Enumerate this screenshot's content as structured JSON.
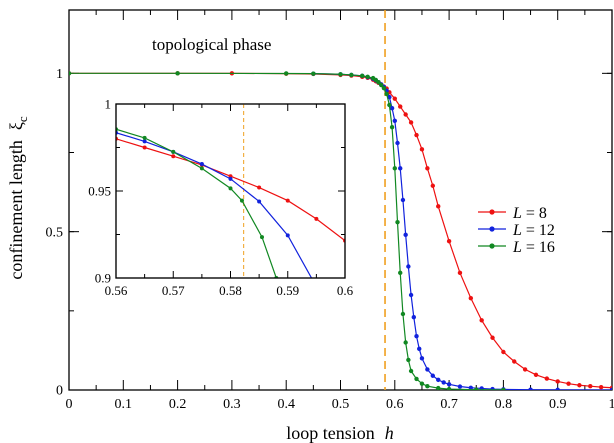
{
  "chart_data": [
    {
      "id": "main",
      "type": "line",
      "xlabel": "loop tension",
      "xlabel_symbol": "h",
      "ylabel": "confinement length",
      "ylabel_symbol": "ξ",
      "ylabel_subscript": "c",
      "xlim": [
        0,
        1
      ],
      "ylim": [
        0,
        1.2
      ],
      "xticks": [
        "0",
        "0.1",
        "0.2",
        "0.3",
        "0.4",
        "0.5",
        "0.6",
        "0.7",
        "0.8",
        "0.9",
        "1"
      ],
      "yticks": [
        "0",
        "0.5",
        "1"
      ],
      "annotation": "topological phase",
      "critical_h": 0.582,
      "critical_line_color": "#f0a020",
      "legend_position": "center-right",
      "legend": [
        {
          "L": "L",
          "eq": " = 8"
        },
        {
          "L": "L",
          "eq": " = 12"
        },
        {
          "L": "L",
          "eq": " = 16"
        }
      ],
      "series": [
        {
          "name": "L = 8",
          "color": "#ee1111",
          "x": [
            0.0,
            0.2,
            0.3,
            0.4,
            0.45,
            0.5,
            0.52,
            0.54,
            0.55,
            0.56,
            0.565,
            0.57,
            0.575,
            0.58,
            0.585,
            0.59,
            0.6,
            0.61,
            0.62,
            0.63,
            0.64,
            0.65,
            0.66,
            0.67,
            0.68,
            0.7,
            0.72,
            0.74,
            0.76,
            0.78,
            0.8,
            0.82,
            0.84,
            0.86,
            0.88,
            0.9,
            0.92,
            0.94,
            0.96,
            0.98,
            1.0
          ],
          "y": [
            1.0,
            1.0,
            1.0,
            0.999,
            0.998,
            0.995,
            0.993,
            0.989,
            0.986,
            0.98,
            0.975,
            0.97,
            0.965,
            0.958,
            0.952,
            0.94,
            0.92,
            0.895,
            0.87,
            0.845,
            0.805,
            0.76,
            0.7,
            0.645,
            0.58,
            0.47,
            0.37,
            0.29,
            0.22,
            0.165,
            0.12,
            0.09,
            0.065,
            0.048,
            0.036,
            0.027,
            0.02,
            0.015,
            0.012,
            0.009,
            0.007
          ]
        },
        {
          "name": "L = 12",
          "color": "#1122dd",
          "x": [
            0.45,
            0.5,
            0.52,
            0.54,
            0.55,
            0.56,
            0.565,
            0.57,
            0.575,
            0.58,
            0.585,
            0.59,
            0.595,
            0.6,
            0.605,
            0.61,
            0.615,
            0.62,
            0.625,
            0.63,
            0.635,
            0.64,
            0.645,
            0.65,
            0.66,
            0.67,
            0.68,
            0.69,
            0.7,
            0.72,
            0.74,
            0.76,
            0.78,
            0.8,
            0.85,
            0.9,
            1.0
          ],
          "y": [
            0.999,
            0.997,
            0.995,
            0.992,
            0.988,
            0.983,
            0.978,
            0.972,
            0.965,
            0.957,
            0.945,
            0.925,
            0.89,
            0.85,
            0.78,
            0.7,
            0.6,
            0.49,
            0.39,
            0.3,
            0.23,
            0.17,
            0.13,
            0.1,
            0.065,
            0.045,
            0.032,
            0.024,
            0.018,
            0.011,
            0.007,
            0.005,
            0.003,
            0.002,
            0.001,
            0.0005,
            0.0002
          ]
        },
        {
          "name": "L = 16",
          "color": "#118822",
          "x": [
            0.0,
            0.2,
            0.4,
            0.45,
            0.5,
            0.52,
            0.54,
            0.55,
            0.56,
            0.565,
            0.57,
            0.575,
            0.58,
            0.585,
            0.59,
            0.595,
            0.6,
            0.605,
            0.61,
            0.615,
            0.62,
            0.625,
            0.63,
            0.64,
            0.65,
            0.66,
            0.68,
            0.7,
            0.75,
            0.8
          ],
          "y": [
            1.0,
            1.0,
            0.9995,
            0.999,
            0.997,
            0.995,
            0.992,
            0.989,
            0.985,
            0.979,
            0.972,
            0.963,
            0.953,
            0.935,
            0.9,
            0.83,
            0.7,
            0.53,
            0.37,
            0.24,
            0.15,
            0.095,
            0.06,
            0.035,
            0.02,
            0.012,
            0.006,
            0.003,
            0.001,
            0.0003
          ]
        }
      ]
    },
    {
      "id": "inset",
      "type": "line",
      "xlim": [
        0.56,
        0.6
      ],
      "ylim": [
        0.9,
        1.0
      ],
      "xticks": [
        "0.56",
        "0.57",
        "0.58",
        "0.59",
        "0.6"
      ],
      "yticks": [
        "0.9",
        "0.95",
        "1"
      ],
      "critical_h": 0.5823,
      "series": [
        {
          "name": "L = 8",
          "color": "#ee1111",
          "x": [
            0.56,
            0.565,
            0.57,
            0.575,
            0.58,
            0.585,
            0.59,
            0.595,
            0.6
          ],
          "y": [
            0.98,
            0.975,
            0.97,
            0.965,
            0.9585,
            0.952,
            0.9445,
            0.934,
            0.9215
          ]
        },
        {
          "name": "L = 12",
          "color": "#1122dd",
          "x": [
            0.56,
            0.565,
            0.57,
            0.575,
            0.58,
            0.585,
            0.59,
            0.595
          ],
          "y": [
            0.9835,
            0.9785,
            0.9725,
            0.9655,
            0.957,
            0.944,
            0.9245,
            0.895
          ]
        },
        {
          "name": "L = 16",
          "color": "#118822",
          "x": [
            0.56,
            0.565,
            0.57,
            0.575,
            0.58,
            0.582,
            0.5855,
            0.588,
            0.59
          ],
          "y": [
            0.9855,
            0.9805,
            0.9725,
            0.963,
            0.9515,
            0.9445,
            0.9235,
            0.9,
            0.88
          ]
        }
      ]
    }
  ]
}
